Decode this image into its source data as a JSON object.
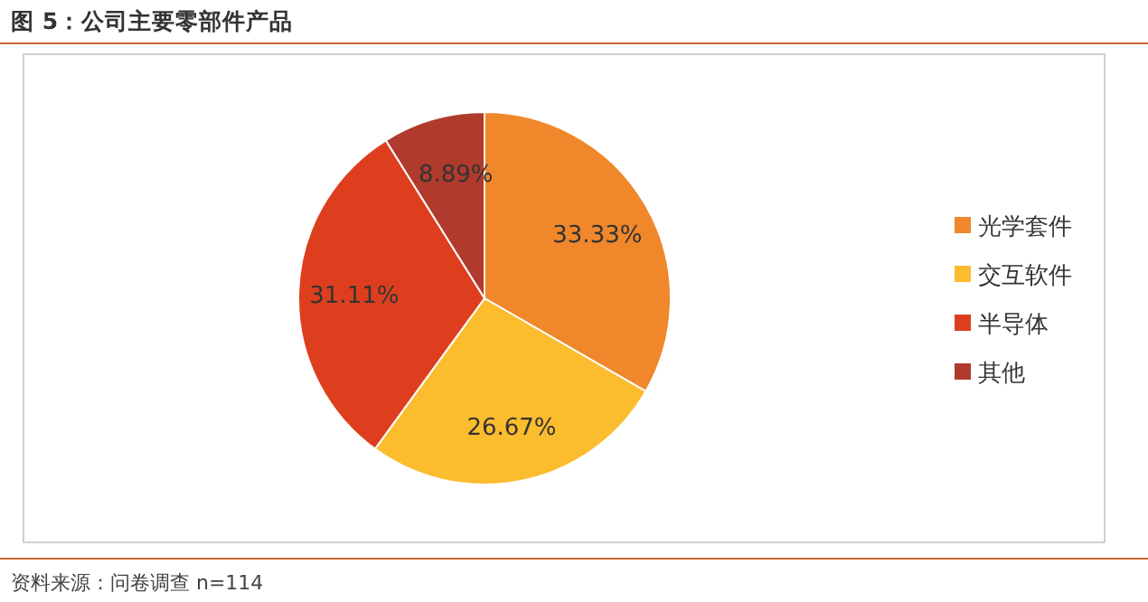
{
  "chart_data": {
    "type": "pie",
    "title": "图 5：公司主要零部件产品",
    "annotations": [
      "资料来源：问卷调查 n=114"
    ],
    "categories": [
      "光学套件",
      "交互软件",
      "半导体",
      "其他"
    ],
    "values": [
      33.33,
      26.67,
      31.11,
      8.89
    ],
    "colors": [
      "#f0872a",
      "#fbbc2e",
      "#dd3f1e",
      "#b03a2c"
    ],
    "value_labels": [
      "33.33%",
      "26.67%",
      "31.11%",
      "8.89%"
    ],
    "legend": "right"
  }
}
